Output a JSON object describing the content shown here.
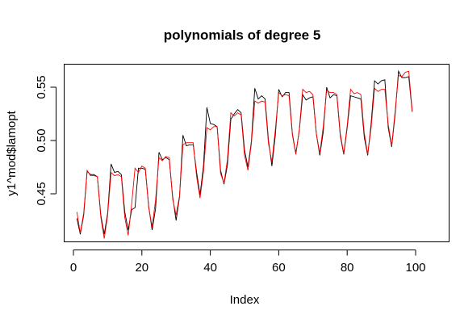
{
  "chart_data": {
    "type": "line",
    "title": "polynomials of degree 5",
    "xlabel": "Index",
    "ylabel": "y1^mod$lamopt",
    "xlim": [
      0,
      100
    ],
    "ylim": [
      0.404,
      0.568
    ],
    "xticks": [
      0,
      20,
      40,
      60,
      80,
      100
    ],
    "yticks": [
      0.45,
      0.5,
      0.55
    ],
    "ytick_labels": [
      "0.45",
      "0.50",
      "0.55"
    ],
    "grid": false,
    "legend": "none",
    "x": [
      1,
      2,
      3,
      4,
      5,
      6,
      7,
      8,
      9,
      10,
      11,
      12,
      13,
      14,
      15,
      16,
      17,
      18,
      19,
      20,
      21,
      22,
      23,
      24,
      25,
      26,
      27,
      28,
      29,
      30,
      31,
      32,
      33,
      34,
      35,
      36,
      37,
      38,
      39,
      40,
      41,
      42,
      43,
      44,
      45,
      46,
      47,
      48,
      49,
      50,
      51,
      52,
      53,
      54,
      55,
      56,
      57,
      58,
      59,
      60,
      61,
      62,
      63,
      64,
      65,
      66,
      67,
      68,
      69,
      70,
      71,
      72,
      73,
      74,
      75,
      76,
      77,
      78,
      79,
      80,
      81,
      82,
      83,
      84,
      85,
      86,
      87,
      88,
      89,
      90,
      91,
      92,
      93,
      94,
      95,
      96,
      97,
      98,
      99
    ],
    "series": [
      {
        "color": "#000000",
        "values": [
          0.427,
          0.412,
          0.43,
          0.471,
          0.468,
          0.468,
          0.466,
          0.43,
          0.412,
          0.432,
          0.478,
          0.47,
          0.471,
          0.468,
          0.433,
          0.416,
          0.435,
          0.437,
          0.474,
          0.474,
          0.473,
          0.438,
          0.416,
          0.436,
          0.489,
          0.482,
          0.484,
          0.482,
          0.447,
          0.425,
          0.447,
          0.505,
          0.495,
          0.496,
          0.496,
          0.47,
          0.449,
          0.476,
          0.531,
          0.516,
          0.515,
          0.513,
          0.472,
          0.459,
          0.477,
          0.52,
          0.525,
          0.529,
          0.526,
          0.491,
          0.475,
          0.499,
          0.549,
          0.539,
          0.542,
          0.539,
          0.5,
          0.476,
          0.505,
          0.548,
          0.541,
          0.545,
          0.545,
          0.506,
          0.488,
          0.509,
          0.543,
          0.538,
          0.54,
          0.541,
          0.506,
          0.486,
          0.508,
          0.55,
          0.54,
          0.543,
          0.542,
          0.504,
          0.487,
          0.512,
          0.542,
          0.541,
          0.54,
          0.539,
          0.503,
          0.486,
          0.516,
          0.556,
          0.553,
          0.556,
          0.557,
          0.512,
          0.494,
          0.524,
          0.565,
          0.559,
          0.559,
          0.56,
          0.527
        ]
      },
      {
        "color": "#ff0000",
        "values": [
          0.433,
          0.413,
          0.432,
          0.472,
          0.467,
          0.467,
          0.466,
          0.428,
          0.408,
          0.43,
          0.47,
          0.467,
          0.468,
          0.466,
          0.428,
          0.411,
          0.44,
          0.474,
          0.47,
          0.476,
          0.474,
          0.437,
          0.419,
          0.444,
          0.484,
          0.481,
          0.485,
          0.484,
          0.445,
          0.43,
          0.448,
          0.496,
          0.498,
          0.498,
          0.498,
          0.466,
          0.446,
          0.471,
          0.512,
          0.51,
          0.513,
          0.513,
          0.469,
          0.46,
          0.482,
          0.526,
          0.523,
          0.526,
          0.524,
          0.486,
          0.472,
          0.497,
          0.537,
          0.535,
          0.537,
          0.536,
          0.497,
          0.48,
          0.51,
          0.545,
          0.542,
          0.543,
          0.542,
          0.505,
          0.487,
          0.51,
          0.548,
          0.545,
          0.546,
          0.543,
          0.506,
          0.488,
          0.513,
          0.547,
          0.545,
          0.545,
          0.543,
          0.506,
          0.488,
          0.514,
          0.548,
          0.544,
          0.545,
          0.543,
          0.507,
          0.487,
          0.512,
          0.549,
          0.546,
          0.548,
          0.548,
          0.515,
          0.495,
          0.527,
          0.561,
          0.56,
          0.564,
          0.565,
          0.528
        ]
      }
    ]
  }
}
